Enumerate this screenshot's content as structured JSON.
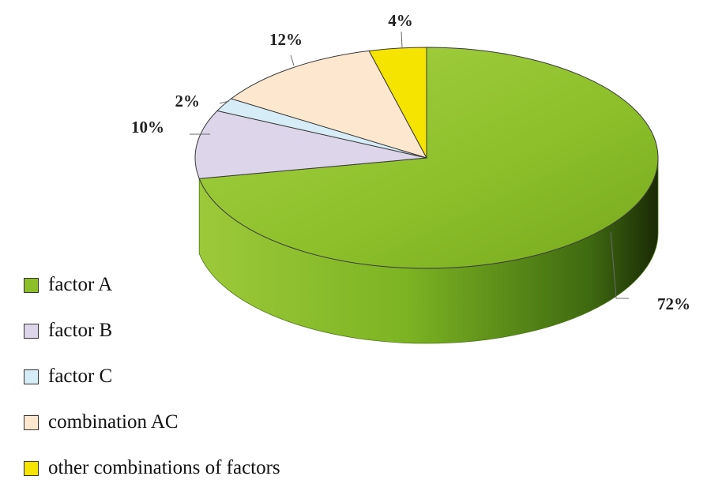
{
  "chart_data": {
    "type": "pie",
    "style": "3d",
    "title": "",
    "slices": [
      {
        "label": "factor A",
        "value": 72,
        "value_label": "72%",
        "color": "#8cbf2a"
      },
      {
        "label": "factor  B",
        "value": 10,
        "value_label": "10%",
        "color": "#ddd5e9"
      },
      {
        "label": "factor  C",
        "value": 2,
        "value_label": "2%",
        "color": "#d6ecf7"
      },
      {
        "label": "combination AC",
        "value": 12,
        "value_label": "12%",
        "color": "#fde8cf"
      },
      {
        "label": "other combinations of factors",
        "value": 4,
        "value_label": "4%",
        "color": "#f5e400"
      }
    ],
    "legend": {
      "placement": "bottom-left",
      "entries": [
        "factor A",
        "factor  B",
        "factor  C",
        "combination AC",
        "other combinations of factors"
      ]
    }
  }
}
